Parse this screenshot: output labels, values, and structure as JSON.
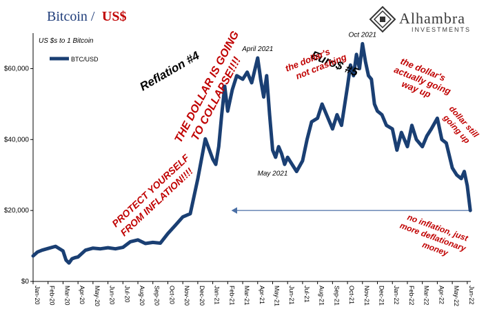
{
  "header": {
    "title_part1": "Bitcoin /",
    "title_part2": "US$"
  },
  "logo": {
    "name": "Alhambra",
    "subtitle": "INVESTMENTS",
    "icon": "alhambra-arch-logo"
  },
  "colors": {
    "line": "#1a3f73",
    "title_blue": "#1f3d7a",
    "title_red": "#c00000",
    "annotation_red": "#c00000",
    "arrow": "#4a6fa5"
  },
  "chart_data": {
    "type": "line",
    "units_note": "US $s to 1 Bitcoin",
    "ylim": [
      0,
      70000
    ],
    "yticks": [
      0,
      20000,
      40000,
      60000
    ],
    "ytick_labels": [
      "$0",
      "$20,000",
      "$40,000",
      "$60,000"
    ],
    "xtick_labels": [
      "Jan-20",
      "Feb-20",
      "Mar-20",
      "Apr-20",
      "May-20",
      "Jun-20",
      "Jul-20",
      "Aug-20",
      "Sep-20",
      "Oct-20",
      "Nov-20",
      "Dec-20",
      "Jan-21",
      "Feb-21",
      "Mar-21",
      "Apr-21",
      "May-21",
      "Jun-21",
      "Jul-21",
      "Aug-21",
      "Sep-21",
      "Oct-21",
      "Nov-21",
      "Dec-21",
      "Jan-22",
      "Feb-22",
      "Mar-22",
      "Apr-22",
      "May-22",
      "Jun-22"
    ],
    "grid": false,
    "legend_placement": "top-left",
    "series": [
      {
        "name": "BTC/USD",
        "x": [
          0,
          0.3,
          0.6,
          1,
          1.5,
          2,
          2.2,
          2.4,
          2.6,
          2.8,
          3,
          3.5,
          4,
          4.5,
          5,
          5.5,
          6,
          6.5,
          7,
          7.5,
          8,
          8.5,
          9,
          9.5,
          10,
          10.5,
          11,
          11.5,
          12,
          12.2,
          12.4,
          12.6,
          12.8,
          13,
          13.3,
          13.6,
          14,
          14.3,
          14.6,
          15,
          15.2,
          15.4,
          15.6,
          15.8,
          16,
          16.2,
          16.4,
          16.6,
          16.8,
          17,
          17.3,
          17.6,
          18,
          18.3,
          18.6,
          19,
          19.3,
          19.6,
          20,
          20.3,
          20.6,
          21,
          21.2,
          21.4,
          21.6,
          21.8,
          22,
          22.2,
          22.4,
          22.6,
          22.8,
          23,
          23.3,
          23.6,
          24,
          24.3,
          24.6,
          25,
          25.3,
          25.6,
          26,
          26.3,
          26.6,
          27,
          27.3,
          27.6,
          28,
          28.3,
          28.6,
          28.8,
          29,
          29.2
        ],
        "values": [
          7200,
          8300,
          8800,
          9300,
          9900,
          8600,
          6000,
          5200,
          6400,
          6700,
          6900,
          8800,
          9400,
          9200,
          9500,
          9200,
          9600,
          11200,
          11700,
          10700,
          11000,
          10800,
          13500,
          15800,
          18200,
          19100,
          28900,
          40200,
          34500,
          33000,
          38000,
          47000,
          55000,
          48000,
          54000,
          58000,
          57000,
          59000,
          56000,
          63000,
          57000,
          52000,
          58000,
          47000,
          37000,
          35000,
          38000,
          36000,
          33000,
          35000,
          33000,
          31000,
          34000,
          40000,
          45000,
          46000,
          50000,
          47000,
          43000,
          47000,
          44000,
          55000,
          61000,
          58000,
          64000,
          60000,
          67000,
          62000,
          58000,
          57000,
          50000,
          48000,
          47000,
          44000,
          43000,
          37000,
          42000,
          38000,
          44000,
          40000,
          38000,
          41000,
          43000,
          46000,
          40000,
          39000,
          32000,
          30000,
          29000,
          31000,
          27000,
          20000
        ],
        "peak_labels": [
          {
            "text": "April 2021",
            "x": 15.0,
            "value": 63000
          },
          {
            "text": "May 2021",
            "x": 16.0,
            "value": 37000
          },
          {
            "text": "Oct 2021",
            "x": 22.0,
            "value": 67000
          }
        ]
      }
    ],
    "reference_arrow": {
      "value": 20000,
      "from_x": 29.2,
      "to_x": 13.3
    },
    "annotations": [
      {
        "id": "reflation",
        "text": "Reflation #4"
      },
      {
        "id": "euro",
        "text": "Euro$ #5"
      },
      {
        "id": "collapse1",
        "text": "THE DOLLAR IS GOING"
      },
      {
        "id": "collapse2",
        "text": "TO COLLAPSE!!!!"
      },
      {
        "id": "protect1",
        "text": "PROTECT YOURSELF"
      },
      {
        "id": "protect2",
        "text": "FROM INFLATION!!!!"
      },
      {
        "id": "notcrash1",
        "text": "the dollar's"
      },
      {
        "id": "notcrash2",
        "text": "not crashing"
      },
      {
        "id": "wayup1",
        "text": "the dollar's"
      },
      {
        "id": "wayup2",
        "text": "actually going"
      },
      {
        "id": "wayup3",
        "text": "way up"
      },
      {
        "id": "still1",
        "text": "dollar still"
      },
      {
        "id": "still2",
        "text": "going up"
      },
      {
        "id": "noinf1",
        "text": "no inflation, just"
      },
      {
        "id": "noinf2",
        "text": "more deflationary"
      },
      {
        "id": "noinf3",
        "text": "money"
      }
    ]
  }
}
